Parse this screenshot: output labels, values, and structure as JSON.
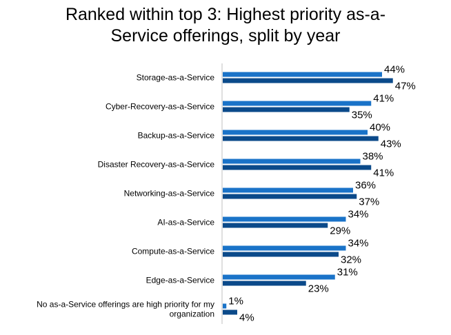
{
  "chart_data": {
    "type": "bar",
    "orientation": "horizontal",
    "title_lines": [
      "Ranked within top 3: Highest priority as-a-",
      "Service offerings, split by year"
    ],
    "categories": [
      [
        "Storage-as-a-Service"
      ],
      [
        "Cyber-Recovery-as-a-Service"
      ],
      [
        "Backup-as-a-Service"
      ],
      [
        "Disaster Recovery-as-a-Service"
      ],
      [
        "Networking-as-a-Service"
      ],
      [
        "AI-as-a-Service"
      ],
      [
        "Compute-as-a-Service"
      ],
      [
        "Edge-as-a-Service"
      ],
      [
        "No as-a-Service offerings are high priority for my",
        "organization"
      ]
    ],
    "series": [
      {
        "color": "#1a73c8",
        "values": [
          44,
          41,
          40,
          38,
          36,
          34,
          34,
          31,
          1
        ]
      },
      {
        "color": "#0b4a8a",
        "values": [
          47,
          35,
          43,
          41,
          37,
          29,
          32,
          23,
          4
        ]
      }
    ],
    "value_suffix": "%",
    "xlim": [
      0,
      50
    ],
    "grid": false,
    "legend": "none"
  }
}
